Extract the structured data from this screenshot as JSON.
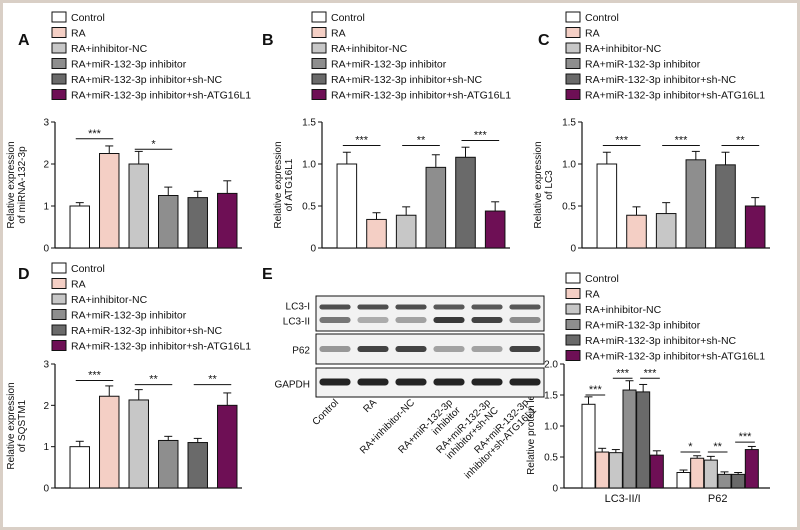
{
  "colors": {
    "background": "#ffffff",
    "frame": "#d9cfc6",
    "c0": "#ffffff",
    "c1": "#f4cfc5",
    "c2": "#c7c7c7",
    "c3": "#8e8e8e",
    "c4": "#6a6a6a",
    "c5": "#6e0f55"
  },
  "chart_data": [
    {
      "panel": "A",
      "type": "bar",
      "legend": [
        "Control",
        "RA",
        "RA+inhibitor-NC",
        "RA+miR-132-3p inhibitor",
        "RA+miR-132-3p inhibitor+sh-NC",
        "RA+miR-132-3p inhibitor+sh-ATG16L1"
      ],
      "ylabel": [
        "Relative expression",
        "of miRNA-132-3p"
      ],
      "ylim": [
        0,
        3
      ],
      "yticks": [
        "0",
        "1",
        "2",
        "3"
      ],
      "values": [
        1.0,
        2.25,
        2.0,
        1.25,
        1.2,
        1.3
      ],
      "errors": [
        0.08,
        0.18,
        0.3,
        0.2,
        0.15,
        0.3
      ],
      "significance": [
        {
          "from": 0,
          "to": 1,
          "label": "***",
          "y": 2.6
        },
        {
          "from": 2,
          "to": 3,
          "label": "*",
          "y": 2.35
        }
      ]
    },
    {
      "panel": "B",
      "type": "bar",
      "legend": [
        "Control",
        "RA",
        "RA+inhibitor-NC",
        "RA+miR-132-3p inhibitor",
        "RA+miR-132-3p inhibitor+sh-NC",
        "RA+miR-132-3p inhibitor+sh-ATG16L1"
      ],
      "ylabel": [
        "Relative expression",
        "of ATG16L1"
      ],
      "ylim": [
        0,
        1.5
      ],
      "yticks": [
        "0",
        "0.5",
        "1.0",
        "1.5"
      ],
      "values": [
        1.0,
        0.34,
        0.39,
        0.96,
        1.08,
        0.44
      ],
      "errors": [
        0.14,
        0.08,
        0.1,
        0.15,
        0.12,
        0.11
      ],
      "significance": [
        {
          "from": 0,
          "to": 1,
          "label": "***",
          "y": 1.22
        },
        {
          "from": 2,
          "to": 3,
          "label": "**",
          "y": 1.22
        },
        {
          "from": 4,
          "to": 5,
          "label": "***",
          "y": 1.28
        }
      ]
    },
    {
      "panel": "C",
      "type": "bar",
      "legend": [
        "Control",
        "RA",
        "RA+inhibitor-NC",
        "RA+miR-132-3p inhibitor",
        "RA+miR-132-3p inhibitor+sh-NC",
        "RA+miR-132-3p inhibitor+sh-ATG16L1"
      ],
      "ylabel": [
        "Relative expression",
        "of LC3"
      ],
      "ylim": [
        0,
        1.5
      ],
      "yticks": [
        "0",
        "0.5",
        "1.0",
        "1.5"
      ],
      "values": [
        1.0,
        0.39,
        0.41,
        1.05,
        0.99,
        0.5
      ],
      "errors": [
        0.14,
        0.1,
        0.13,
        0.1,
        0.15,
        0.1
      ],
      "significance": [
        {
          "from": 0,
          "to": 1,
          "label": "***",
          "y": 1.22
        },
        {
          "from": 2,
          "to": 3,
          "label": "***",
          "y": 1.22
        },
        {
          "from": 4,
          "to": 5,
          "label": "**",
          "y": 1.22
        }
      ]
    },
    {
      "panel": "D",
      "type": "bar",
      "legend": [
        "Control",
        "RA",
        "RA+inhibitor-NC",
        "RA+miR-132-3p inhibitor",
        "RA+miR-132-3p inhibitor+sh-NC",
        "RA+miR-132-3p inhibitor+sh-ATG16L1"
      ],
      "ylabel": [
        "Relative expression",
        "of SQSTM1"
      ],
      "ylim": [
        0,
        3
      ],
      "yticks": [
        "0",
        "1",
        "2",
        "3"
      ],
      "values": [
        1.0,
        2.22,
        2.13,
        1.15,
        1.1,
        2.0
      ],
      "errors": [
        0.13,
        0.25,
        0.25,
        0.1,
        0.1,
        0.3
      ],
      "significance": [
        {
          "from": 0,
          "to": 1,
          "label": "***",
          "y": 2.6
        },
        {
          "from": 2,
          "to": 3,
          "label": "**",
          "y": 2.5
        },
        {
          "from": 4,
          "to": 5,
          "label": "**",
          "y": 2.5
        }
      ]
    },
    {
      "panel": "E",
      "type": "bar",
      "legend": [
        "Control",
        "RA",
        "RA+inhibitor-NC",
        "RA+miR-132-3p inhibitor",
        "RA+miR-132-3p inhibitor+sh-NC",
        "RA+miR-132-3p inhibitor+sh-ATG16L1"
      ],
      "categories": [
        "LC3-II/I",
        "P62"
      ],
      "ylabel": [
        "Relative protein levels"
      ],
      "ylim": [
        0,
        2.0
      ],
      "yticks": [
        "0",
        "0.5",
        "1.0",
        "1.5",
        "2.0"
      ],
      "series_values": [
        [
          1.35,
          0.25
        ],
        [
          0.58,
          0.48
        ],
        [
          0.57,
          0.45
        ],
        [
          1.58,
          0.22
        ],
        [
          1.55,
          0.22
        ],
        [
          0.53,
          0.62
        ]
      ],
      "series_errors": [
        [
          0.12,
          0.04
        ],
        [
          0.06,
          0.04
        ],
        [
          0.05,
          0.06
        ],
        [
          0.15,
          0.04
        ],
        [
          0.12,
          0.03
        ],
        [
          0.07,
          0.05
        ]
      ],
      "significance": [
        {
          "group": 0,
          "from": 0,
          "to": 1,
          "label": "***",
          "y": 1.5
        },
        {
          "group": 0,
          "from": 2,
          "to": 3,
          "label": "***",
          "y": 1.77
        },
        {
          "group": 0,
          "from": 4,
          "to": 5,
          "label": "***",
          "y": 1.77
        },
        {
          "group": 1,
          "from": 0,
          "to": 1,
          "label": "*",
          "y": 0.58
        },
        {
          "group": 1,
          "from": 2,
          "to": 3,
          "label": "**",
          "y": 0.58
        },
        {
          "group": 1,
          "from": 4,
          "to": 5,
          "label": "***",
          "y": 0.74
        }
      ]
    }
  ],
  "blot": {
    "rows": [
      {
        "labels": [
          "LC3-I",
          "LC3-II"
        ],
        "box": "lc3"
      },
      {
        "labels": [
          "P62"
        ],
        "box": "p62"
      },
      {
        "labels": [
          "GAPDH"
        ],
        "box": "gapdh"
      }
    ],
    "lanes": [
      "Control",
      "RA",
      "RA+inhibitor-NC",
      "RA+miR-132-3p\ninhibitor",
      "RA+miR-132-3p\ninhibitor+sh-NC",
      "RA+miR-132-3p\ninhibitor+sh-ATG16L1"
    ],
    "lc3_upper_intensity": [
      0.75,
      0.75,
      0.75,
      0.7,
      0.7,
      0.7
    ],
    "lc3_lower_intensity": [
      0.55,
      0.3,
      0.35,
      0.85,
      0.8,
      0.45
    ],
    "p62_intensity": [
      0.4,
      0.8,
      0.8,
      0.35,
      0.35,
      0.8
    ],
    "gapdh_intensity": [
      0.95,
      0.95,
      0.95,
      0.95,
      0.95,
      0.95
    ]
  }
}
